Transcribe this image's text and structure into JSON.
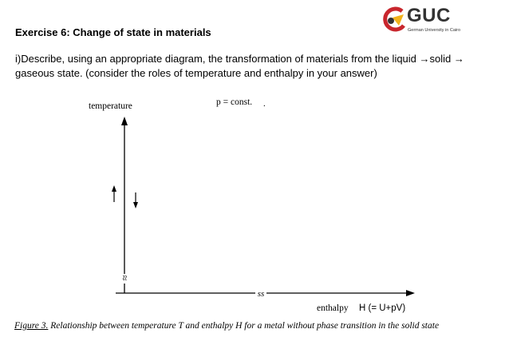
{
  "header": {
    "exercise_title": "Exercise 6: Change of state in materials",
    "logo_text": "GUC",
    "logo_subtext": "German University in Cairo"
  },
  "question": {
    "text": "i)Describe, using an appropriate diagram, the transformation of materials from the liquid →solid → gaseous state.  (consider the roles of temperature and enthalpy in your answer)"
  },
  "diagram": {
    "y_axis_label": "temperature",
    "condition_label": "p = const.",
    "x_axis_label": "enthalpy",
    "x_axis_formula": "H (= U+pV)",
    "axis_break_symbol": "≈",
    "x_break_symbol": "ss",
    "up_arrow": "↑",
    "down_arrow": "↓"
  },
  "caption": {
    "figure_ref": "Figure 3.",
    "text": " Relationship between temperature T and enthalpy H for a metal without phase transition in the solid state"
  },
  "colors": {
    "logo_red": "#c8262d",
    "logo_yellow": "#f2b21b",
    "text": "#000000"
  }
}
